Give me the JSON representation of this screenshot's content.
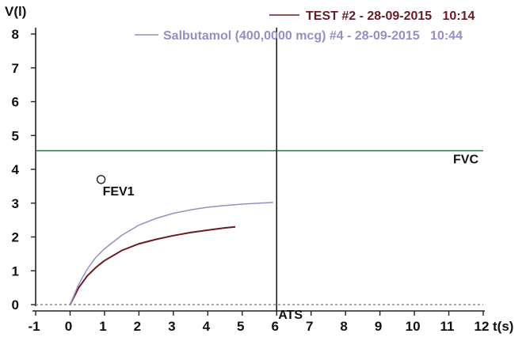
{
  "chart_data": {
    "type": "line",
    "xlabel": "t(s)",
    "ylabel": "V(l)",
    "xlim": [
      -1,
      12
    ],
    "ylim": [
      0,
      8
    ],
    "x_ticks": [
      "-1",
      "0",
      "1",
      "2",
      "3",
      "4",
      "5",
      "6",
      "7",
      "8",
      "9",
      "10",
      "11",
      "12"
    ],
    "y_ticks": [
      "0",
      "1",
      "2",
      "3",
      "4",
      "5",
      "6",
      "7",
      "8"
    ],
    "grid": false,
    "legend_position": "top-right",
    "series": [
      {
        "name": "TEST #2 - 28-09-2015   10:14",
        "color": "#6a1a24",
        "x": [
          0,
          0.25,
          0.5,
          0.75,
          1,
          1.5,
          2,
          2.5,
          3,
          3.5,
          4,
          4.5,
          4.8
        ],
        "y": [
          0,
          0.5,
          0.85,
          1.1,
          1.3,
          1.6,
          1.8,
          1.93,
          2.04,
          2.13,
          2.2,
          2.27,
          2.3
        ]
      },
      {
        "name": "Salbutamol (400,0000 mcg) #4 - 28-09-2015   10:44",
        "color": "#9a8cc4",
        "x": [
          0,
          0.25,
          0.5,
          0.75,
          1,
          1.5,
          2,
          2.5,
          3,
          3.5,
          4,
          4.5,
          5,
          5.5,
          5.9
        ],
        "y": [
          0,
          0.6,
          1.05,
          1.4,
          1.65,
          2.05,
          2.35,
          2.55,
          2.7,
          2.8,
          2.88,
          2.93,
          2.97,
          3.0,
          3.02
        ]
      }
    ],
    "reference_lines": {
      "fvc_y": 4.55,
      "ats_x": 6,
      "zero_y": 0,
      "fvc_color": "#2e6a48",
      "zero_color": "#7a9a6a",
      "ats_color": "#111111"
    },
    "annotations": {
      "fvc_label": "FVC",
      "ats_label": "ATS",
      "fev1_label": "FEV1",
      "fev1_marker": {
        "x": 0.9,
        "y": 3.7
      }
    }
  }
}
